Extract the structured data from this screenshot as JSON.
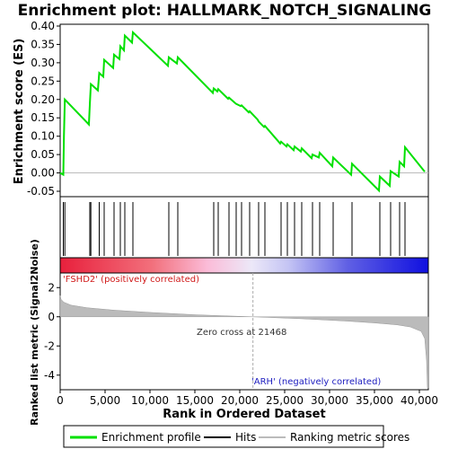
{
  "chart_data": [
    {
      "panel": "enrichment",
      "type": "line",
      "title": "Enrichment plot: HALLMARK_NOTCH_SIGNALING",
      "ylabel": "Enrichment score (ES)",
      "ylim": [
        -0.05,
        0.4
      ],
      "yticks": [
        "0.40",
        "0.35",
        "0.30",
        "0.25",
        "0.20",
        "0.15",
        "0.10",
        "0.05",
        "0.00",
        "-0.05"
      ],
      "xlim": [
        0,
        41000
      ],
      "series": [
        {
          "name": "Enrichment profile",
          "color": "#00e000",
          "points": [
            [
              0,
              0.0
            ],
            [
              350,
              -0.005
            ],
            [
              420,
              0.1
            ],
            [
              520,
              0.2
            ],
            [
              3200,
              0.132
            ],
            [
              3300,
              0.185
            ],
            [
              3420,
              0.242
            ],
            [
              4200,
              0.225
            ],
            [
              4350,
              0.272
            ],
            [
              4800,
              0.262
            ],
            [
              4900,
              0.308
            ],
            [
              5900,
              0.286
            ],
            [
              6000,
              0.322
            ],
            [
              6600,
              0.31
            ],
            [
              6700,
              0.345
            ],
            [
              7100,
              0.334
            ],
            [
              7200,
              0.374
            ],
            [
              8000,
              0.355
            ],
            [
              8100,
              0.383
            ],
            [
              12000,
              0.292
            ],
            [
              12100,
              0.315
            ],
            [
              13000,
              0.298
            ],
            [
              13100,
              0.315
            ],
            [
              17000,
              0.218
            ],
            [
              17100,
              0.23
            ],
            [
              17500,
              0.222
            ],
            [
              17600,
              0.228
            ],
            [
              18700,
              0.202
            ],
            [
              18800,
              0.205
            ],
            [
              19500,
              0.19
            ],
            [
              19600,
              0.188
            ],
            [
              20100,
              0.182
            ],
            [
              20200,
              0.184
            ],
            [
              21000,
              0.165
            ],
            [
              21100,
              0.168
            ],
            [
              22000,
              0.145
            ],
            [
              22100,
              0.14
            ],
            [
              22700,
              0.125
            ],
            [
              22800,
              0.128
            ],
            [
              24500,
              0.08
            ],
            [
              24600,
              0.085
            ],
            [
              25200,
              0.072
            ],
            [
              25300,
              0.078
            ],
            [
              26000,
              0.062
            ],
            [
              26100,
              0.072
            ],
            [
              26800,
              0.058
            ],
            [
              26900,
              0.067
            ],
            [
              28000,
              0.04
            ],
            [
              28100,
              0.05
            ],
            [
              28800,
              0.042
            ],
            [
              28900,
              0.055
            ],
            [
              30300,
              0.018
            ],
            [
              30400,
              0.042
            ],
            [
              32400,
              -0.005
            ],
            [
              32500,
              0.025
            ],
            [
              35500,
              -0.048
            ],
            [
              35600,
              -0.01
            ],
            [
              36700,
              -0.035
            ],
            [
              36800,
              0.005
            ],
            [
              37700,
              -0.01
            ],
            [
              37800,
              0.03
            ],
            [
              38300,
              0.018
            ],
            [
              38400,
              0.07
            ],
            [
              40600,
              0.003
            ]
          ]
        }
      ],
      "hits_label": "Hits",
      "hits": [
        350,
        520,
        3300,
        3420,
        4350,
        4900,
        6000,
        6700,
        7200,
        8100,
        12100,
        13100,
        17100,
        17600,
        18800,
        19600,
        20200,
        21100,
        22100,
        22800,
        24600,
        25300,
        26100,
        26900,
        28100,
        28900,
        30400,
        32500,
        35600,
        36800,
        37800,
        38400
      ]
    },
    {
      "panel": "ranked-metric",
      "type": "area",
      "ylabel": "Ranked list metric (Signal2Noise)",
      "xlabel": "Rank in Ordered Dataset",
      "ylim": [
        -5,
        3
      ],
      "yticks": [
        "2",
        "0",
        "-2",
        "-4"
      ],
      "xticks": [
        "0",
        "5,000",
        "10,000",
        "15,000",
        "20,000",
        "25,000",
        "30,000",
        "35,000",
        "40,000"
      ],
      "xlim": [
        0,
        41000
      ],
      "series_name": "Ranking metric scores",
      "profile": [
        [
          0,
          1.45
        ],
        [
          100,
          1.2
        ],
        [
          400,
          1.0
        ],
        [
          1200,
          0.8
        ],
        [
          3000,
          0.62
        ],
        [
          6000,
          0.45
        ],
        [
          10000,
          0.3
        ],
        [
          15000,
          0.14
        ],
        [
          21468,
          0.0
        ],
        [
          27000,
          -0.14
        ],
        [
          32000,
          -0.3
        ],
        [
          35000,
          -0.42
        ],
        [
          37500,
          -0.55
        ],
        [
          39000,
          -0.7
        ],
        [
          40200,
          -1.0
        ],
        [
          40600,
          -1.5
        ],
        [
          40800,
          -3.0
        ],
        [
          40900,
          -4.9
        ],
        [
          41000,
          -4.9
        ]
      ],
      "annotations": {
        "positive": "'FSHD2' (positively correlated)",
        "zero_cross": "Zero cross at 21468",
        "negative": "'ARH' (negatively correlated)"
      },
      "zero_cross": 21468,
      "colors": {
        "positive": "#e8203c",
        "negative": "#1010e0",
        "label_pos": "#d01818",
        "label_neg": "#2020c0"
      }
    }
  ],
  "legend": {
    "items": [
      {
        "label": "Enrichment profile",
        "color": "#00e000"
      },
      {
        "label": "Hits",
        "color": "#000000"
      },
      {
        "label": "Ranking metric scores",
        "color": "#bbbbbb"
      }
    ]
  }
}
